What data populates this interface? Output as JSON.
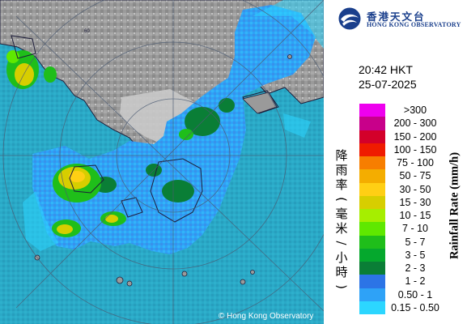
{
  "logo": {
    "name_zh": "香港天文台",
    "name_en": "HONG KONG OBSERVATORY"
  },
  "timestamp": {
    "time": "20:42 HKT",
    "date": "25-07-2025"
  },
  "legend": {
    "title_en": "Rainfall Rate (mm/h)",
    "title_zh": "降雨率(毫米/小時)",
    "items": [
      {
        "label": ">300",
        "color": "#ee00ee"
      },
      {
        "label": "200 - 300",
        "color": "#c8008a"
      },
      {
        "label": "150 - 200",
        "color": "#d3002a"
      },
      {
        "label": "100 - 150",
        "color": "#ef1b00"
      },
      {
        "label": "75 - 100",
        "color": "#f77e00"
      },
      {
        "label": "50 - 75",
        "color": "#f4ad00"
      },
      {
        "label": "30 - 50",
        "color": "#ffcf14"
      },
      {
        "label": "15 - 30",
        "color": "#d7ce00"
      },
      {
        "label": "10 - 15",
        "color": "#a6ee00"
      },
      {
        "label": "7 - 10",
        "color": "#5fe800"
      },
      {
        "label": "5 - 7",
        "color": "#1fbe1a"
      },
      {
        "label": "3 - 5",
        "color": "#05a82d"
      },
      {
        "label": "2 - 3",
        "color": "#0a7e36"
      },
      {
        "label": "1 - 2",
        "color": "#2c74e6"
      },
      {
        "label": "0.50 - 1",
        "color": "#2ea2f7"
      },
      {
        "label": "0.15 - 0.50",
        "color": "#2cd6ff"
      }
    ]
  },
  "map": {
    "range_ring_label": "60",
    "credit": "© Hong Kong Observatory",
    "colors": {
      "sea": "#2aa9c7",
      "land": "#9a9a9a",
      "urban": "#c9c9c9",
      "rain_light": "#2ea2f7",
      "rain_very_light": "#2cd6ff"
    }
  }
}
